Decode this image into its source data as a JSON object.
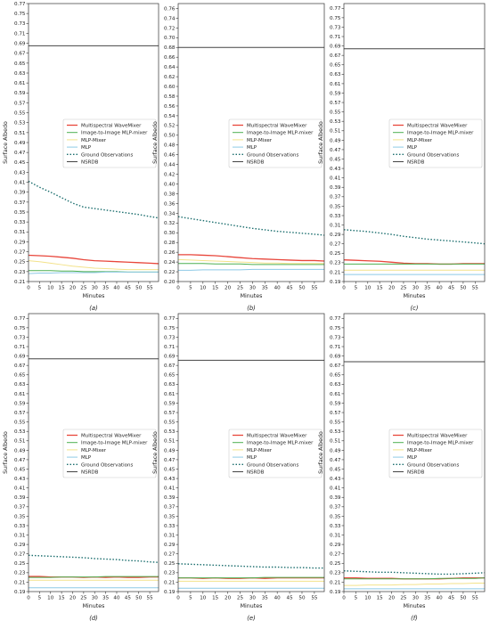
{
  "figure": {
    "series_styles": [
      {
        "name": "Multispectral WaveMixer",
        "color": "#e8463b",
        "width": 1.3,
        "dash": ""
      },
      {
        "name": "Image-to-Image MLP-mixer",
        "color": "#4caf50",
        "width": 1.0,
        "dash": ""
      },
      {
        "name": "MLP-Mixer",
        "color": "#f3e28a",
        "width": 1.0,
        "dash": ""
      },
      {
        "name": "MLP",
        "color": "#8ecae6",
        "width": 1.0,
        "dash": ""
      },
      {
        "name": "Ground Observations",
        "color": "#1b6e6e",
        "width": 1.4,
        "dash": "1.5,2"
      },
      {
        "name": "NSRDB",
        "color": "#444444",
        "width": 1.0,
        "dash": ""
      }
    ]
  },
  "chart_data": [
    {
      "type": "line",
      "panel_label": "(a)",
      "xlabel": "Minutes",
      "ylabel": "Surface Albedo",
      "xlim": [
        0,
        59
      ],
      "ylim": [
        0.21,
        0.77
      ],
      "xticks": [
        0,
        5,
        10,
        15,
        20,
        25,
        30,
        35,
        40,
        45,
        50,
        55
      ],
      "yticks": [
        "0.21",
        "0.23",
        "0.25",
        "0.27",
        "0.29",
        "0.31",
        "0.33",
        "0.35",
        "0.37",
        "0.39",
        "0.41",
        "0.43",
        "0.45",
        "0.47",
        "0.49",
        "0.51",
        "0.53",
        "0.55",
        "0.57",
        "0.59",
        "0.61",
        "0.63",
        "0.65",
        "0.67",
        "0.69",
        "0.71",
        "0.73",
        "0.75",
        "0.77"
      ],
      "legend": "center-right",
      "x": [
        0,
        5,
        10,
        15,
        20,
        25,
        30,
        35,
        40,
        45,
        50,
        55,
        59
      ],
      "series": [
        {
          "name": "Multispectral WaveMixer",
          "values": [
            0.263,
            0.262,
            0.261,
            0.259,
            0.257,
            0.254,
            0.252,
            0.251,
            0.25,
            0.249,
            0.248,
            0.247,
            0.246
          ]
        },
        {
          "name": "Image-to-Image MLP-mixer",
          "values": [
            0.232,
            0.232,
            0.232,
            0.231,
            0.231,
            0.23,
            0.23,
            0.23,
            0.23,
            0.229,
            0.229,
            0.229,
            0.229
          ]
        },
        {
          "name": "MLP-Mixer",
          "values": [
            0.252,
            0.25,
            0.247,
            0.244,
            0.241,
            0.239,
            0.237,
            0.236,
            0.235,
            0.234,
            0.234,
            0.234,
            0.234
          ]
        },
        {
          "name": "MLP",
          "values": [
            0.226,
            0.227,
            0.227,
            0.228,
            0.228,
            0.228,
            0.228,
            0.229,
            0.229,
            0.229,
            0.229,
            0.229,
            0.229
          ]
        },
        {
          "name": "Ground Observations",
          "values": [
            0.412,
            0.4,
            0.39,
            0.379,
            0.368,
            0.36,
            0.357,
            0.354,
            0.351,
            0.348,
            0.345,
            0.341,
            0.338
          ]
        },
        {
          "name": "NSRDB",
          "values": [
            0.685,
            0.685,
            0.685,
            0.685,
            0.685,
            0.685,
            0.685,
            0.685,
            0.685,
            0.685,
            0.685,
            0.685,
            0.685
          ]
        }
      ]
    },
    {
      "type": "line",
      "panel_label": "(b)",
      "xlabel": "Minutes",
      "ylabel": "Surface Albedo",
      "xlim": [
        0,
        59
      ],
      "ylim": [
        0.2,
        0.77
      ],
      "xticks": [
        0,
        5,
        10,
        15,
        20,
        25,
        30,
        35,
        40,
        45,
        50,
        55
      ],
      "yticks": [
        "0.20",
        "0.22",
        "0.24",
        "0.26",
        "0.28",
        "0.30",
        "0.32",
        "0.34",
        "0.36",
        "0.38",
        "0.40",
        "0.42",
        "0.44",
        "0.46",
        "0.48",
        "0.50",
        "0.52",
        "0.54",
        "0.56",
        "0.58",
        "0.60",
        "0.62",
        "0.64",
        "0.66",
        "0.68",
        "0.70",
        "0.72",
        "0.74",
        "0.76"
      ],
      "legend": "center-right",
      "x": [
        0,
        5,
        10,
        15,
        20,
        25,
        30,
        35,
        40,
        45,
        50,
        55,
        59
      ],
      "series": [
        {
          "name": "Multispectral WaveMixer",
          "values": [
            0.255,
            0.255,
            0.254,
            0.253,
            0.251,
            0.249,
            0.247,
            0.246,
            0.245,
            0.244,
            0.243,
            0.243,
            0.242
          ]
        },
        {
          "name": "Image-to-Image MLP-mixer",
          "values": [
            0.237,
            0.237,
            0.237,
            0.236,
            0.236,
            0.236,
            0.235,
            0.235,
            0.235,
            0.235,
            0.235,
            0.235,
            0.235
          ]
        },
        {
          "name": "MLP-Mixer",
          "values": [
            0.245,
            0.244,
            0.243,
            0.242,
            0.241,
            0.24,
            0.239,
            0.238,
            0.238,
            0.237,
            0.237,
            0.237,
            0.237
          ]
        },
        {
          "name": "MLP",
          "values": [
            0.223,
            0.223,
            0.224,
            0.224,
            0.224,
            0.224,
            0.225,
            0.225,
            0.225,
            0.225,
            0.225,
            0.225,
            0.225
          ]
        },
        {
          "name": "Ground Observations",
          "values": [
            0.333,
            0.329,
            0.325,
            0.321,
            0.317,
            0.313,
            0.309,
            0.306,
            0.303,
            0.301,
            0.299,
            0.297,
            0.295
          ]
        },
        {
          "name": "NSRDB",
          "values": [
            0.68,
            0.68,
            0.68,
            0.68,
            0.68,
            0.68,
            0.68,
            0.68,
            0.68,
            0.68,
            0.68,
            0.68,
            0.68
          ]
        }
      ]
    },
    {
      "type": "line",
      "panel_label": "(c)",
      "xlabel": "Minutes",
      "ylabel": "Surface Albedo",
      "xlim": [
        0,
        59
      ],
      "ylim": [
        0.19,
        0.78
      ],
      "xticks": [
        0,
        5,
        10,
        15,
        20,
        25,
        30,
        35,
        40,
        45,
        50,
        55
      ],
      "yticks": [
        "0.19",
        "0.21",
        "0.23",
        "0.25",
        "0.27",
        "0.29",
        "0.31",
        "0.33",
        "0.35",
        "0.37",
        "0.39",
        "0.41",
        "0.43",
        "0.45",
        "0.47",
        "0.49",
        "0.51",
        "0.53",
        "0.55",
        "0.57",
        "0.59",
        "0.61",
        "0.63",
        "0.65",
        "0.67",
        "0.69",
        "0.71",
        "0.73",
        "0.75",
        "0.77"
      ],
      "legend": "center-right",
      "x": [
        0,
        5,
        10,
        15,
        20,
        25,
        30,
        35,
        40,
        45,
        50,
        55,
        59
      ],
      "series": [
        {
          "name": "Multispectral WaveMixer",
          "values": [
            0.236,
            0.235,
            0.234,
            0.233,
            0.231,
            0.229,
            0.228,
            0.228,
            0.227,
            0.227,
            0.228,
            0.228,
            0.228
          ]
        },
        {
          "name": "Image-to-Image MLP-mixer",
          "values": [
            0.227,
            0.227,
            0.227,
            0.227,
            0.227,
            0.227,
            0.227,
            0.227,
            0.227,
            0.227,
            0.227,
            0.227,
            0.227
          ]
        },
        {
          "name": "MLP-Mixer",
          "values": [
            0.214,
            0.214,
            0.214,
            0.214,
            0.214,
            0.214,
            0.214,
            0.214,
            0.214,
            0.214,
            0.214,
            0.214,
            0.214
          ]
        },
        {
          "name": "MLP",
          "values": [
            0.205,
            0.205,
            0.205,
            0.205,
            0.205,
            0.205,
            0.205,
            0.205,
            0.205,
            0.205,
            0.205,
            0.205,
            0.205
          ]
        },
        {
          "name": "Ground Observations",
          "values": [
            0.3,
            0.298,
            0.296,
            0.293,
            0.29,
            0.286,
            0.283,
            0.28,
            0.278,
            0.276,
            0.274,
            0.272,
            0.27
          ]
        },
        {
          "name": "NSRDB",
          "values": [
            0.684,
            0.684,
            0.684,
            0.684,
            0.684,
            0.684,
            0.684,
            0.684,
            0.684,
            0.684,
            0.684,
            0.684,
            0.684
          ]
        }
      ]
    },
    {
      "type": "line",
      "panel_label": "(d)",
      "xlabel": "Minutes",
      "ylabel": "Surface Albedo",
      "xlim": [
        0,
        59
      ],
      "ylim": [
        0.19,
        0.78
      ],
      "xticks": [
        0,
        5,
        10,
        15,
        20,
        25,
        30,
        35,
        40,
        45,
        50,
        55
      ],
      "yticks": [
        "0.19",
        "0.21",
        "0.23",
        "0.25",
        "0.27",
        "0.29",
        "0.31",
        "0.33",
        "0.35",
        "0.37",
        "0.39",
        "0.41",
        "0.43",
        "0.45",
        "0.47",
        "0.49",
        "0.51",
        "0.53",
        "0.55",
        "0.57",
        "0.59",
        "0.61",
        "0.63",
        "0.65",
        "0.67",
        "0.69",
        "0.71",
        "0.73",
        "0.75",
        "0.77"
      ],
      "legend": "center-right",
      "x": [
        0,
        5,
        10,
        15,
        20,
        25,
        30,
        35,
        40,
        45,
        50,
        55,
        59
      ],
      "series": [
        {
          "name": "Multispectral WaveMixer",
          "values": [
            0.222,
            0.222,
            0.221,
            0.221,
            0.221,
            0.22,
            0.221,
            0.22,
            0.221,
            0.22,
            0.22,
            0.221,
            0.221
          ]
        },
        {
          "name": "Image-to-Image MLP-mixer",
          "values": [
            0.22,
            0.22,
            0.22,
            0.221,
            0.221,
            0.221,
            0.221,
            0.222,
            0.222,
            0.222,
            0.222,
            0.222,
            0.222
          ]
        },
        {
          "name": "MLP-Mixer",
          "values": [
            0.214,
            0.214,
            0.214,
            0.214,
            0.214,
            0.214,
            0.214,
            0.214,
            0.214,
            0.214,
            0.214,
            0.214,
            0.214
          ]
        },
        {
          "name": "MLP",
          "values": [
            0.198,
            0.198,
            0.198,
            0.198,
            0.198,
            0.198,
            0.198,
            0.198,
            0.198,
            0.198,
            0.198,
            0.198,
            0.198
          ]
        },
        {
          "name": "Ground Observations",
          "values": [
            0.267,
            0.266,
            0.265,
            0.264,
            0.263,
            0.262,
            0.26,
            0.259,
            0.258,
            0.256,
            0.255,
            0.253,
            0.252
          ]
        },
        {
          "name": "NSRDB",
          "values": [
            0.684,
            0.684,
            0.684,
            0.684,
            0.684,
            0.684,
            0.684,
            0.684,
            0.684,
            0.684,
            0.684,
            0.684,
            0.684
          ]
        }
      ]
    },
    {
      "type": "line",
      "panel_label": "(e)",
      "xlabel": "Minutes",
      "ylabel": "Surface Albedo",
      "xlim": [
        0,
        59
      ],
      "ylim": [
        0.19,
        0.78
      ],
      "xticks": [
        0,
        5,
        10,
        15,
        20,
        25,
        30,
        35,
        40,
        45,
        50,
        55
      ],
      "yticks": [
        "0.19",
        "0.21",
        "0.23",
        "0.25",
        "0.27",
        "0.29",
        "0.31",
        "0.33",
        "0.35",
        "0.37",
        "0.39",
        "0.41",
        "0.43",
        "0.45",
        "0.47",
        "0.49",
        "0.51",
        "0.53",
        "0.55",
        "0.57",
        "0.59",
        "0.61",
        "0.63",
        "0.65",
        "0.67",
        "0.69",
        "0.71",
        "0.73",
        "0.75",
        "0.77"
      ],
      "legend": "center-right",
      "x": [
        0,
        5,
        10,
        15,
        20,
        25,
        30,
        35,
        40,
        45,
        50,
        55,
        59
      ],
      "series": [
        {
          "name": "Multispectral WaveMixer",
          "values": [
            0.219,
            0.219,
            0.218,
            0.219,
            0.218,
            0.218,
            0.219,
            0.218,
            0.219,
            0.219,
            0.219,
            0.219,
            0.219
          ]
        },
        {
          "name": "Image-to-Image MLP-mixer",
          "values": [
            0.219,
            0.219,
            0.219,
            0.219,
            0.219,
            0.219,
            0.219,
            0.22,
            0.22,
            0.22,
            0.22,
            0.22,
            0.22
          ]
        },
        {
          "name": "MLP-Mixer",
          "values": [
            0.212,
            0.212,
            0.212,
            0.212,
            0.212,
            0.212,
            0.212,
            0.212,
            0.212,
            0.212,
            0.212,
            0.212,
            0.212
          ]
        },
        {
          "name": "MLP",
          "values": [
            0.197,
            0.197,
            0.197,
            0.197,
            0.197,
            0.197,
            0.197,
            0.197,
            0.197,
            0.197,
            0.197,
            0.197,
            0.197
          ]
        },
        {
          "name": "Ground Observations",
          "values": [
            0.249,
            0.248,
            0.247,
            0.246,
            0.245,
            0.244,
            0.243,
            0.242,
            0.242,
            0.241,
            0.241,
            0.24,
            0.24
          ]
        },
        {
          "name": "NSRDB",
          "values": [
            0.681,
            0.681,
            0.681,
            0.681,
            0.681,
            0.681,
            0.681,
            0.681,
            0.681,
            0.681,
            0.681,
            0.681,
            0.681
          ]
        }
      ]
    },
    {
      "type": "line",
      "panel_label": "(f)",
      "xlabel": "Minutes",
      "ylabel": "Surface Albedo",
      "xlim": [
        0,
        59
      ],
      "ylim": [
        0.19,
        0.78
      ],
      "xticks": [
        0,
        5,
        10,
        15,
        20,
        25,
        30,
        35,
        40,
        45,
        50,
        55
      ],
      "yticks": [
        "0.19",
        "0.21",
        "0.23",
        "0.25",
        "0.27",
        "0.29",
        "0.31",
        "0.33",
        "0.35",
        "0.37",
        "0.39",
        "0.41",
        "0.43",
        "0.45",
        "0.47",
        "0.49",
        "0.51",
        "0.53",
        "0.55",
        "0.57",
        "0.59",
        "0.61",
        "0.63",
        "0.65",
        "0.67",
        "0.69",
        "0.71",
        "0.73",
        "0.75",
        "0.77"
      ],
      "legend": "center-right",
      "x": [
        0,
        5,
        10,
        15,
        20,
        25,
        30,
        35,
        40,
        45,
        50,
        55,
        59
      ],
      "series": [
        {
          "name": "Multispectral WaveMixer",
          "values": [
            0.219,
            0.219,
            0.218,
            0.218,
            0.218,
            0.217,
            0.217,
            0.217,
            0.217,
            0.218,
            0.219,
            0.219,
            0.219
          ]
        },
        {
          "name": "Image-to-Image MLP-mixer",
          "values": [
            0.217,
            0.217,
            0.217,
            0.217,
            0.217,
            0.217,
            0.217,
            0.217,
            0.218,
            0.218,
            0.218,
            0.218,
            0.219
          ]
        },
        {
          "name": "MLP-Mixer",
          "values": [
            0.203,
            0.203,
            0.204,
            0.204,
            0.204,
            0.205,
            0.205,
            0.206,
            0.206,
            0.207,
            0.207,
            0.208,
            0.208
          ]
        },
        {
          "name": "MLP",
          "values": [
            0.196,
            0.196,
            0.196,
            0.196,
            0.196,
            0.196,
            0.196,
            0.196,
            0.196,
            0.196,
            0.196,
            0.196,
            0.196
          ]
        },
        {
          "name": "Ground Observations",
          "values": [
            0.234,
            0.233,
            0.232,
            0.231,
            0.231,
            0.23,
            0.229,
            0.228,
            0.227,
            0.227,
            0.228,
            0.229,
            0.23
          ]
        },
        {
          "name": "NSRDB",
          "values": [
            0.678,
            0.678,
            0.678,
            0.678,
            0.678,
            0.678,
            0.678,
            0.678,
            0.678,
            0.678,
            0.678,
            0.678,
            0.678
          ]
        }
      ]
    }
  ]
}
